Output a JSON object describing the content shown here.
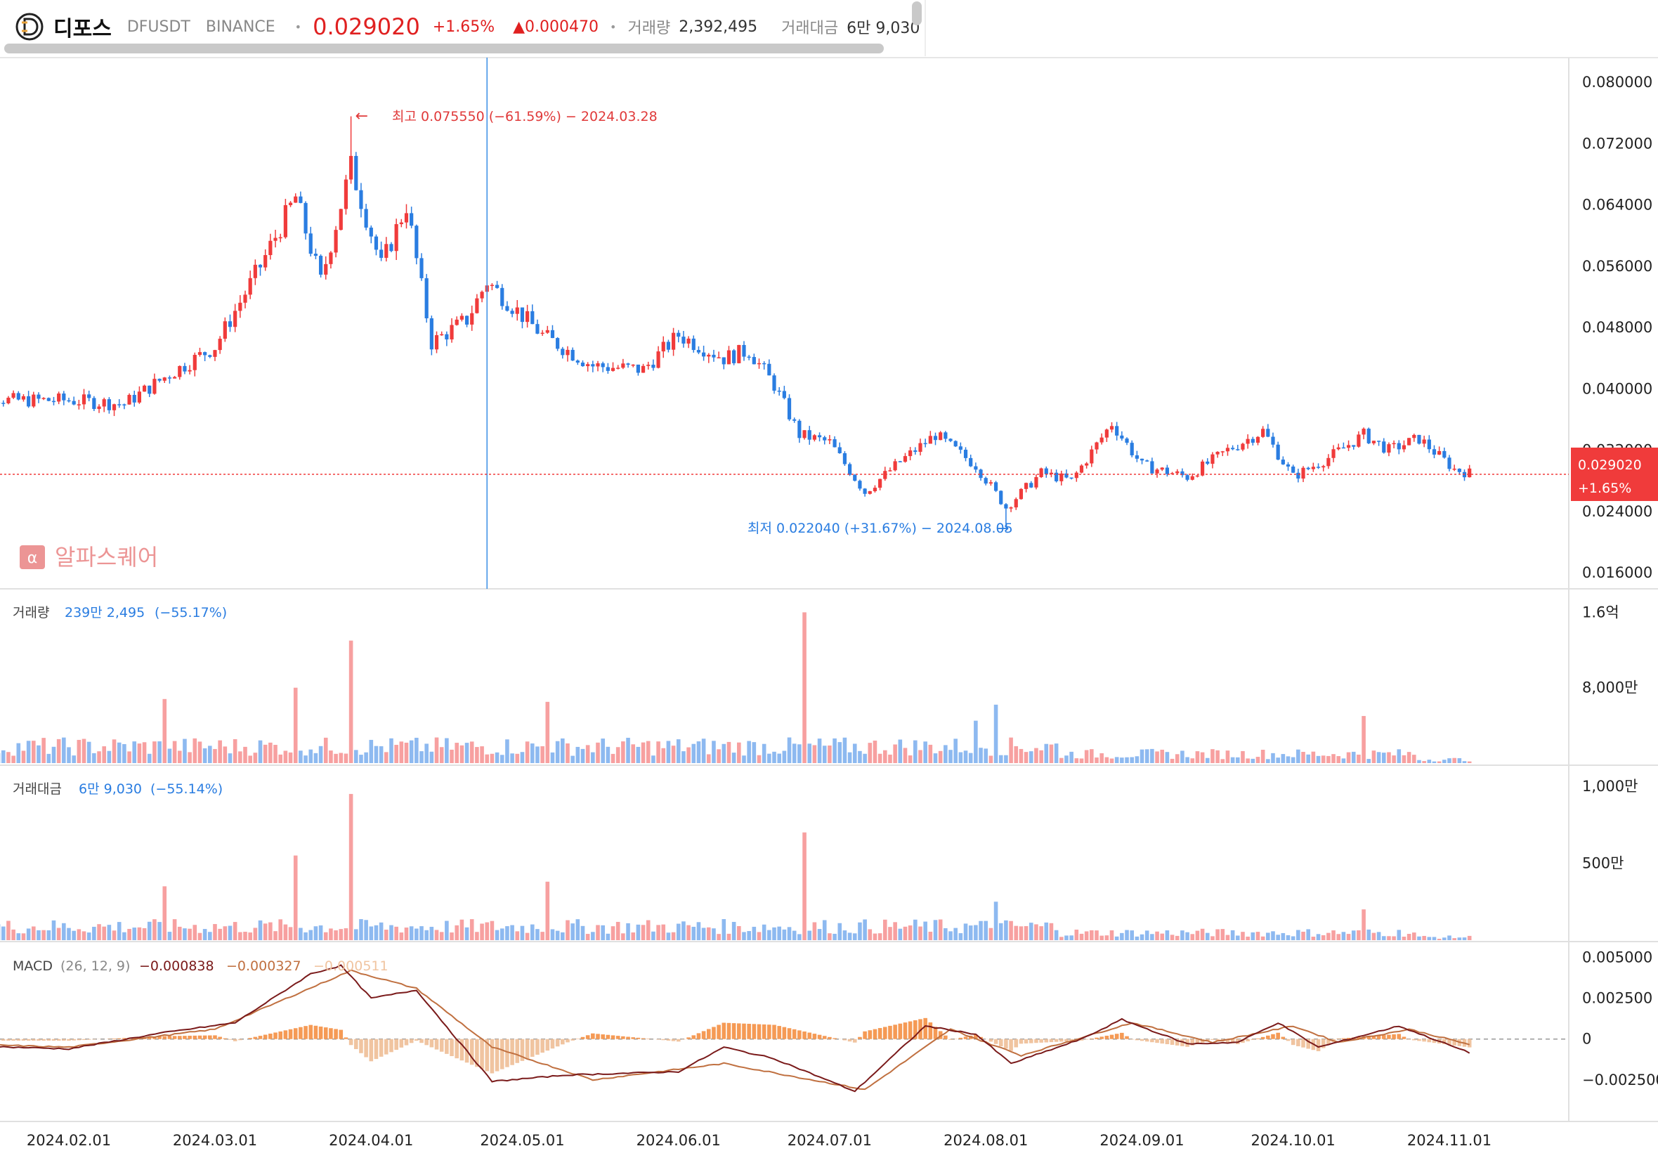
{
  "header": {
    "name": "디포스",
    "ticker": "DFUSDT",
    "exchange": "BINANCE",
    "price": "0.029020",
    "change_pct": "+1.65%",
    "change_abs": "0.000470",
    "volume_label": "거래량",
    "volume_value": "2,392,495",
    "turnover_label": "거래대금",
    "turnover_value": "6만 9,030"
  },
  "watermark": "알파스퀘어",
  "colors": {
    "up": "#f03b3b",
    "down": "#2a7de1",
    "up_light": "#f7a0a0",
    "down_light": "#8db9f0",
    "macd": "#7a1a1a",
    "signal": "#c07040",
    "hist_pos": "#f59a55",
    "hist_neg": "#f0c4a0"
  },
  "chart_data": [
    {
      "type": "candlestick",
      "title": "디포스 DFUSDT BINANCE",
      "x_ticks": [
        "2024.02.01",
        "2024.03.01",
        "2024.04.01",
        "2024.05.01",
        "2024.06.01",
        "2024.07.01",
        "2024.08.01",
        "2024.09.01",
        "2024.10.01",
        "2024.11.01"
      ],
      "y_ticks": [
        "0.080000",
        "0.072000",
        "0.064000",
        "0.056000",
        "0.048000",
        "0.040000",
        "0.032000",
        "0.024000",
        "0.016000"
      ],
      "ylim": [
        0.016,
        0.08
      ],
      "last_price_label": "0.029020",
      "last_change_label": "+1.65%",
      "high_annotation": "최고 0.075550 (−61.59%) − 2024.03.28",
      "low_annotation": "최저 0.022040 (+31.67%) − 2024.08.05",
      "crosshair_date": "2024.04.24",
      "closes": [
        {
          "d": "2024.01.10",
          "c": 0.0405
        },
        {
          "d": "2024.01.20",
          "c": 0.0385
        },
        {
          "d": "2024.02.01",
          "c": 0.0385
        },
        {
          "d": "2024.02.12",
          "c": 0.038
        },
        {
          "d": "2024.02.20",
          "c": 0.0415
        },
        {
          "d": "2024.03.01",
          "c": 0.0455
        },
        {
          "d": "2024.03.10",
          "c": 0.056
        },
        {
          "d": "2024.03.17",
          "c": 0.065
        },
        {
          "d": "2024.03.22",
          "c": 0.054
        },
        {
          "d": "2024.03.28",
          "c": 0.069
        },
        {
          "d": "2024.04.03",
          "c": 0.056
        },
        {
          "d": "2024.04.08",
          "c": 0.064
        },
        {
          "d": "2024.04.13",
          "c": 0.046
        },
        {
          "d": "2024.04.20",
          "c": 0.049
        },
        {
          "d": "2024.04.24",
          "c": 0.054
        },
        {
          "d": "2024.05.05",
          "c": 0.047
        },
        {
          "d": "2024.05.15",
          "c": 0.043
        },
        {
          "d": "2024.05.25",
          "c": 0.0425
        },
        {
          "d": "2024.06.01",
          "c": 0.047
        },
        {
          "d": "2024.06.10",
          "c": 0.044
        },
        {
          "d": "2024.06.15",
          "c": 0.045
        },
        {
          "d": "2024.06.20",
          "c": 0.0405
        },
        {
          "d": "2024.06.25",
          "c": 0.034
        },
        {
          "d": "2024.07.01",
          "c": 0.033
        },
        {
          "d": "2024.07.08",
          "c": 0.0265
        },
        {
          "d": "2024.07.15",
          "c": 0.0305
        },
        {
          "d": "2024.07.22",
          "c": 0.034
        },
        {
          "d": "2024.07.30",
          "c": 0.03
        },
        {
          "d": "2024.08.05",
          "c": 0.0245
        },
        {
          "d": "2024.08.12",
          "c": 0.029
        },
        {
          "d": "2024.08.18",
          "c": 0.028
        },
        {
          "d": "2024.08.26",
          "c": 0.0355
        },
        {
          "d": "2024.09.01",
          "c": 0.03
        },
        {
          "d": "2024.09.10",
          "c": 0.0285
        },
        {
          "d": "2024.09.18",
          "c": 0.032
        },
        {
          "d": "2024.09.25",
          "c": 0.0345
        },
        {
          "d": "2024.10.01",
          "c": 0.0285
        },
        {
          "d": "2024.10.08",
          "c": 0.031
        },
        {
          "d": "2024.10.15",
          "c": 0.034
        },
        {
          "d": "2024.10.20",
          "c": 0.032
        },
        {
          "d": "2024.10.26",
          "c": 0.0335
        },
        {
          "d": "2024.11.02",
          "c": 0.0295
        },
        {
          "d": "2024.11.05",
          "c": 0.029
        }
      ]
    },
    {
      "type": "bar",
      "title": "거래량",
      "value_label": "239만 2,495",
      "change_label": "(−55.17%)",
      "y_ticks": [
        "1.6억",
        "8,000만"
      ],
      "ylim": [
        0,
        170000000
      ],
      "spikes": [
        {
          "d": "2024.02.20",
          "v": 68000000
        },
        {
          "d": "2024.03.17",
          "v": 80000000
        },
        {
          "d": "2024.03.28",
          "v": 130000000
        },
        {
          "d": "2024.05.06",
          "v": 65000000
        },
        {
          "d": "2024.06.26",
          "v": 160000000
        },
        {
          "d": "2024.07.30",
          "v": 45000000
        },
        {
          "d": "2024.08.03",
          "v": 62000000
        },
        {
          "d": "2024.10.15",
          "v": 50000000
        }
      ]
    },
    {
      "type": "bar",
      "title": "거래대금",
      "value_label": "6만 9,030",
      "change_label": "(−55.14%)",
      "y_ticks": [
        "1,000만",
        "500만"
      ],
      "ylim": [
        0,
        10500000
      ],
      "spikes": [
        {
          "d": "2024.02.20",
          "v": 3500000
        },
        {
          "d": "2024.03.17",
          "v": 5500000
        },
        {
          "d": "2024.03.28",
          "v": 9500000
        },
        {
          "d": "2024.05.06",
          "v": 3800000
        },
        {
          "d": "2024.06.26",
          "v": 7000000
        },
        {
          "d": "2024.08.03",
          "v": 2500000
        },
        {
          "d": "2024.10.15",
          "v": 2000000
        }
      ]
    },
    {
      "type": "line",
      "title": "MACD",
      "params": "(26, 12, 9)",
      "values_text": [
        "−0.000838",
        "−0.000327",
        "−0.000511"
      ],
      "y_ticks": [
        "0.005000",
        "0.002500",
        "0",
        "−0.002500"
      ],
      "ylim": [
        -0.0035,
        0.0052
      ],
      "series": [
        {
          "name": "MACD",
          "points": [
            {
              "d": "2024.01.10",
              "v": -0.0004
            },
            {
              "d": "2024.02.01",
              "v": -0.0006
            },
            {
              "d": "2024.02.20",
              "v": 0.0004
            },
            {
              "d": "2024.03.05",
              "v": 0.001
            },
            {
              "d": "2024.03.20",
              "v": 0.004
            },
            {
              "d": "2024.03.26",
              "v": 0.0045
            },
            {
              "d": "2024.04.01",
              "v": 0.0025
            },
            {
              "d": "2024.04.10",
              "v": 0.003
            },
            {
              "d": "2024.04.18",
              "v": 0.0
            },
            {
              "d": "2024.04.25",
              "v": -0.0026
            },
            {
              "d": "2024.05.10",
              "v": -0.0022
            },
            {
              "d": "2024.06.01",
              "v": -0.002
            },
            {
              "d": "2024.06.10",
              "v": -0.0005
            },
            {
              "d": "2024.06.20",
              "v": -0.0012
            },
            {
              "d": "2024.07.06",
              "v": -0.0032
            },
            {
              "d": "2024.07.20",
              "v": 0.0008
            },
            {
              "d": "2024.07.30",
              "v": 0.0003
            },
            {
              "d": "2024.08.06",
              "v": -0.0015
            },
            {
              "d": "2024.08.20",
              "v": 0.0
            },
            {
              "d": "2024.08.28",
              "v": 0.0012
            },
            {
              "d": "2024.09.10",
              "v": -0.0003
            },
            {
              "d": "2024.09.20",
              "v": -0.0002
            },
            {
              "d": "2024.09.28",
              "v": 0.001
            },
            {
              "d": "2024.10.06",
              "v": -0.0005
            },
            {
              "d": "2024.10.22",
              "v": 0.0008
            },
            {
              "d": "2024.11.05",
              "v": -0.00084
            }
          ]
        },
        {
          "name": "Signal",
          "points": [
            {
              "d": "2024.01.10",
              "v": -0.0003
            },
            {
              "d": "2024.02.01",
              "v": -0.0005
            },
            {
              "d": "2024.03.01",
              "v": 0.0006
            },
            {
              "d": "2024.03.28",
              "v": 0.0042
            },
            {
              "d": "2024.04.10",
              "v": 0.0031
            },
            {
              "d": "2024.04.25",
              "v": -0.0005
            },
            {
              "d": "2024.05.15",
              "v": -0.0025
            },
            {
              "d": "2024.06.10",
              "v": -0.0015
            },
            {
              "d": "2024.07.08",
              "v": -0.0031
            },
            {
              "d": "2024.07.25",
              "v": 0.0006
            },
            {
              "d": "2024.08.08",
              "v": -0.001
            },
            {
              "d": "2024.08.30",
              "v": 0.001
            },
            {
              "d": "2024.09.15",
              "v": -0.0002
            },
            {
              "d": "2024.10.01",
              "v": 0.0008
            },
            {
              "d": "2024.10.10",
              "v": -0.0002
            },
            {
              "d": "2024.10.24",
              "v": 0.0006
            },
            {
              "d": "2024.11.05",
              "v": -0.00033
            }
          ]
        }
      ]
    }
  ]
}
